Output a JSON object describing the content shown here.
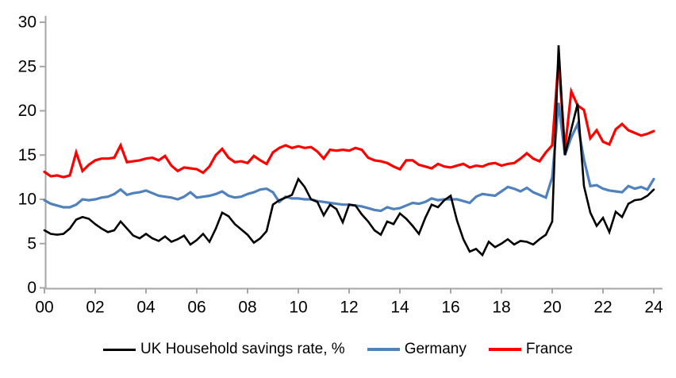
{
  "chart_data": {
    "type": "line",
    "title": "",
    "xlabel": "",
    "ylabel": "",
    "x_frequency": "quarterly",
    "x_start": "2000-Q1",
    "x_end": "2024-Q1",
    "x_tick_labels": [
      "00",
      "02",
      "04",
      "06",
      "08",
      "10",
      "12",
      "14",
      "16",
      "18",
      "20",
      "22",
      "24"
    ],
    "y_ticks": [
      "0",
      "5",
      "10",
      "15",
      "20",
      "25",
      "30"
    ],
    "ylim": [
      0,
      30
    ],
    "grid": false,
    "legend_position": "bottom",
    "axis_color": "#a6a6a6",
    "series": [
      {
        "name": "UK Household savings rate, %",
        "color": "#000000",
        "values": [
          6.5,
          6.1,
          6.0,
          6.1,
          6.7,
          7.7,
          8.0,
          7.8,
          7.2,
          6.7,
          6.3,
          6.5,
          7.5,
          6.7,
          5.9,
          5.6,
          6.1,
          5.6,
          5.3,
          5.8,
          5.2,
          5.5,
          5.9,
          4.9,
          5.4,
          6.1,
          5.2,
          6.7,
          8.5,
          8.1,
          7.2,
          6.6,
          6.0,
          5.1,
          5.6,
          6.4,
          9.4,
          9.9,
          10.2,
          10.5,
          12.3,
          11.4,
          10.0,
          9.7,
          8.2,
          9.4,
          8.9,
          7.4,
          9.4,
          9.3,
          8.3,
          7.5,
          6.5,
          6.0,
          7.5,
          7.2,
          8.4,
          7.8,
          7.0,
          6.1,
          7.9,
          9.4,
          9.1,
          9.9,
          10.4,
          7.6,
          5.5,
          4.1,
          4.4,
          3.7,
          5.2,
          4.6,
          5.0,
          5.5,
          4.9,
          5.3,
          5.2,
          4.9,
          5.5,
          6.0,
          7.5,
          27.4,
          15.0,
          17.9,
          20.8,
          11.5,
          8.5,
          7.0,
          7.9,
          6.3,
          8.6,
          8.0,
          9.5,
          9.9,
          10.0,
          10.4,
          11.1
        ]
      },
      {
        "name": "Germany",
        "color": "#4f81bd",
        "values": [
          9.9,
          9.5,
          9.3,
          9.1,
          9.1,
          9.4,
          10.0,
          9.9,
          10.0,
          10.2,
          10.3,
          10.6,
          11.1,
          10.5,
          10.7,
          10.8,
          11.0,
          10.7,
          10.4,
          10.3,
          10.2,
          10.0,
          10.3,
          10.8,
          10.2,
          10.3,
          10.4,
          10.6,
          10.9,
          10.4,
          10.2,
          10.3,
          10.6,
          10.8,
          11.1,
          11.2,
          10.8,
          9.7,
          10.3,
          10.1,
          10.1,
          10.0,
          10.0,
          9.8,
          9.7,
          9.6,
          9.5,
          9.4,
          9.4,
          9.3,
          9.2,
          9.0,
          8.8,
          8.7,
          9.1,
          8.9,
          9.0,
          9.3,
          9.6,
          9.5,
          9.7,
          10.1,
          9.9,
          10.0,
          10.0,
          10.0,
          9.8,
          9.6,
          10.3,
          10.6,
          10.5,
          10.4,
          10.9,
          11.4,
          11.2,
          10.9,
          11.3,
          10.8,
          10.5,
          10.2,
          12.5,
          20.9,
          15.0,
          17.0,
          18.5,
          14.5,
          11.5,
          11.6,
          11.2,
          11.0,
          10.9,
          10.8,
          11.5,
          11.2,
          11.4,
          11.1,
          12.3
        ]
      },
      {
        "name": "France",
        "color": "#ff0000",
        "values": [
          13.1,
          12.6,
          12.7,
          12.5,
          12.7,
          15.3,
          13.2,
          13.9,
          14.4,
          14.6,
          14.6,
          14.7,
          16.1,
          14.2,
          14.3,
          14.4,
          14.6,
          14.7,
          14.4,
          14.9,
          13.8,
          13.2,
          13.6,
          13.5,
          13.4,
          13.0,
          13.7,
          15.0,
          15.7,
          14.7,
          14.2,
          14.3,
          14.1,
          14.9,
          14.4,
          14.0,
          15.3,
          15.8,
          16.1,
          15.8,
          16.0,
          15.8,
          15.9,
          15.4,
          14.6,
          15.6,
          15.5,
          15.6,
          15.5,
          15.8,
          15.6,
          14.7,
          14.4,
          14.3,
          14.1,
          13.7,
          13.4,
          14.4,
          14.4,
          13.9,
          13.7,
          13.5,
          14.0,
          13.7,
          13.6,
          13.8,
          14.0,
          13.6,
          13.8,
          13.7,
          14.0,
          14.1,
          13.8,
          14.0,
          14.1,
          14.6,
          15.2,
          14.6,
          14.3,
          15.3,
          16.1,
          25.8,
          15.6,
          22.2,
          20.6,
          20.1,
          16.9,
          17.8,
          16.5,
          16.2,
          17.9,
          18.5,
          17.8,
          17.5,
          17.2,
          17.4,
          17.7
        ]
      }
    ]
  }
}
